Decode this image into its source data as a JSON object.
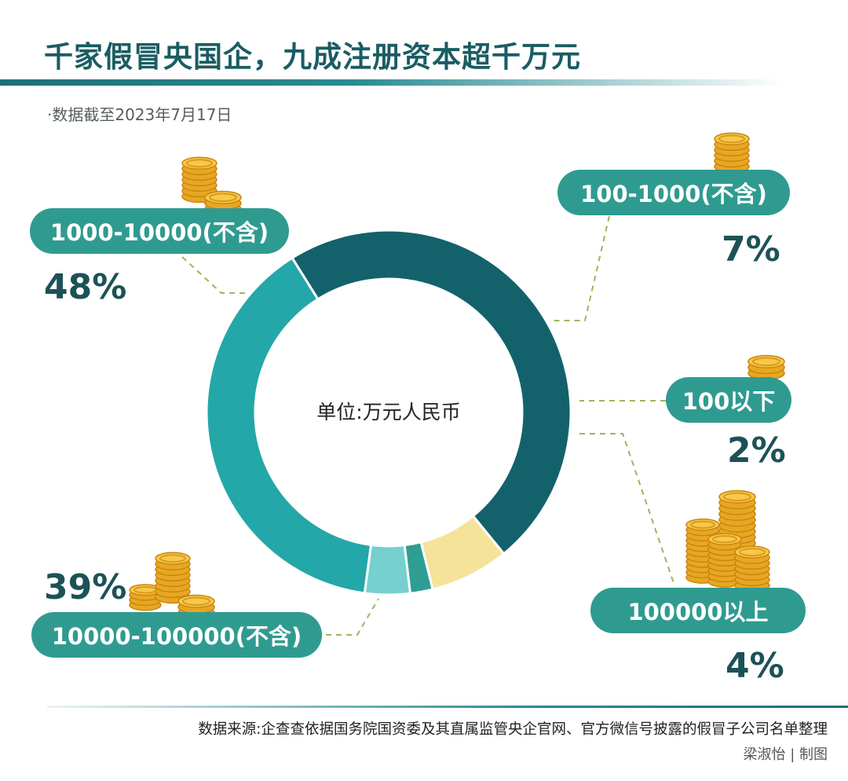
{
  "title": "千家假冒央国企，九成注册资本超千万元",
  "subtitle": "·数据截至2023年7月17日",
  "unit_label": "单位:万元人民币",
  "source": "数据来源:企查查依据国务院国资委及其直属监管央企官网、官方微信号披露的假冒子公司名单整理",
  "credit": "梁淑怡 | 制图",
  "colors": {
    "dark_teal": "#13626b",
    "yellow": "#f5e39a",
    "mid_teal": "#2e9e93",
    "light_teal": "#76d0d0",
    "teal": "#24a7a8",
    "pill": "#2f9b90",
    "coin": "#f2b431"
  },
  "chart_data": {
    "type": "pie",
    "categories": [
      "1000-10000(不含)",
      "100-1000(不含)",
      "100以下",
      "100000以上",
      "10000-100000(不含)"
    ],
    "values": [
      48,
      7,
      2,
      4,
      39
    ],
    "labels": [
      "48%",
      "7%",
      "2%",
      "4%",
      "39%"
    ],
    "unit": "%"
  }
}
